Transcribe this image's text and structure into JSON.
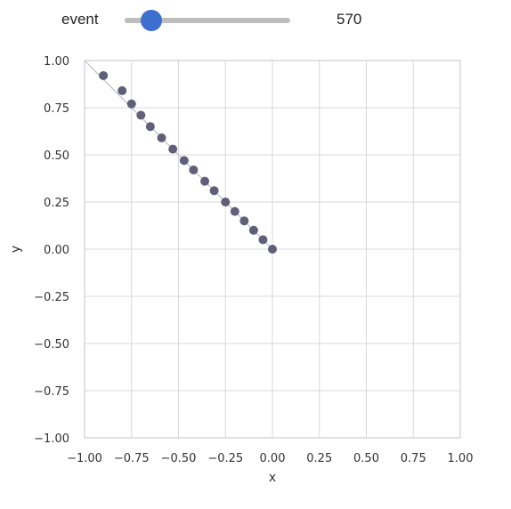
{
  "widget": {
    "label": "event",
    "value": 570,
    "value_text": "570",
    "slider_min": 0,
    "slider_max": 8000,
    "track_color": "#bdbdbd",
    "thumb_color": "#3d6fcf"
  },
  "chart_data": {
    "type": "scatter",
    "title": "",
    "xlabel": "x",
    "ylabel": "y",
    "xlim": [
      -1.0,
      1.0
    ],
    "ylim": [
      -1.0,
      1.0
    ],
    "grid": true,
    "xticks": [
      "−1.00",
      "−0.75",
      "−0.50",
      "−0.25",
      "0.00",
      "0.25",
      "0.50",
      "0.75",
      "1.00"
    ],
    "yticks": [
      "1.00",
      "0.75",
      "0.50",
      "0.25",
      "0.00",
      "−0.25",
      "−0.50",
      "−0.75",
      "−1.00"
    ],
    "xtick_values": [
      -1.0,
      -0.75,
      -0.5,
      -0.25,
      0.0,
      0.25,
      0.5,
      0.75,
      1.0
    ],
    "ytick_values": [
      1.0,
      0.75,
      0.5,
      0.25,
      0.0,
      -0.25,
      -0.5,
      -0.75,
      -1.0
    ],
    "line": {
      "x": [
        -1.0,
        0.0
      ],
      "y": [
        1.0,
        0.0
      ],
      "color": "#c9c9dc"
    },
    "points": {
      "x": [
        -0.9,
        -0.8,
        -0.75,
        -0.7,
        -0.65,
        -0.59,
        -0.53,
        -0.47,
        -0.42,
        -0.36,
        -0.31,
        -0.25,
        -0.2,
        -0.15,
        -0.1,
        -0.05,
        0.0
      ],
      "y": [
        0.92,
        0.84,
        0.77,
        0.71,
        0.65,
        0.59,
        0.53,
        0.47,
        0.42,
        0.36,
        0.31,
        0.25,
        0.2,
        0.15,
        0.1,
        0.05,
        0.0
      ],
      "color": "#5f5f7a"
    },
    "grid_color": "#d9d9d9",
    "frame_color": "#cfcfcf"
  }
}
